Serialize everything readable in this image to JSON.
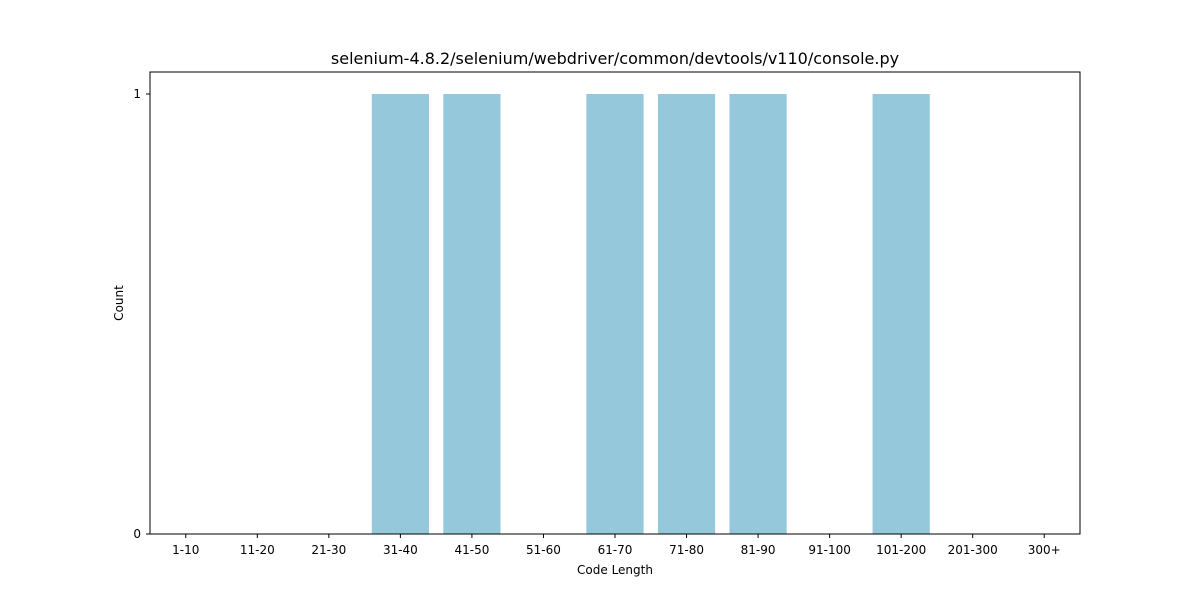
{
  "chart_data": {
    "type": "bar",
    "title": "selenium-4.8.2/selenium/webdriver/common/devtools/v110/console.py",
    "xlabel": "Code Length",
    "ylabel": "Count",
    "categories": [
      "1-10",
      "11-20",
      "21-30",
      "31-40",
      "41-50",
      "51-60",
      "61-70",
      "71-80",
      "81-90",
      "91-100",
      "101-200",
      "201-300",
      "300+"
    ],
    "values": [
      0,
      0,
      0,
      1,
      1,
      0,
      1,
      1,
      1,
      0,
      1,
      0,
      0
    ],
    "yticks": [
      "0",
      "1"
    ],
    "ylim": [
      0,
      1.05
    ],
    "grid": false,
    "bar_color": "#96c8dc"
  }
}
